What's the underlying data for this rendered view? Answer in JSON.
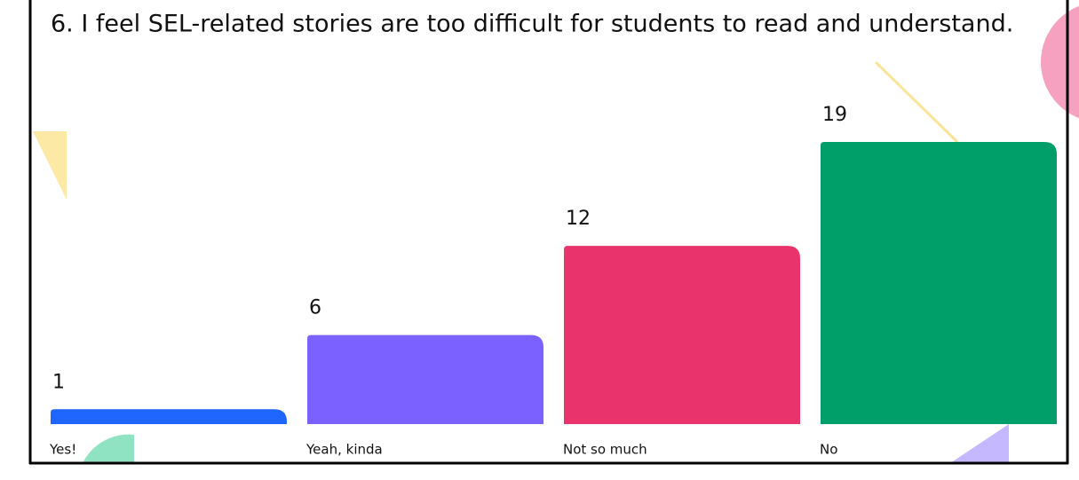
{
  "chart_data": {
    "type": "bar",
    "title": "6. I feel SEL-related stories are too difficult for students to read and understand.",
    "categories": [
      "Yes!",
      "Yeah, kinda",
      "Not so much",
      "No"
    ],
    "values": [
      1,
      6,
      12,
      19
    ],
    "colors": [
      "#1f66ff",
      "#7b61ff",
      "#e8336c",
      "#009e68"
    ]
  }
}
